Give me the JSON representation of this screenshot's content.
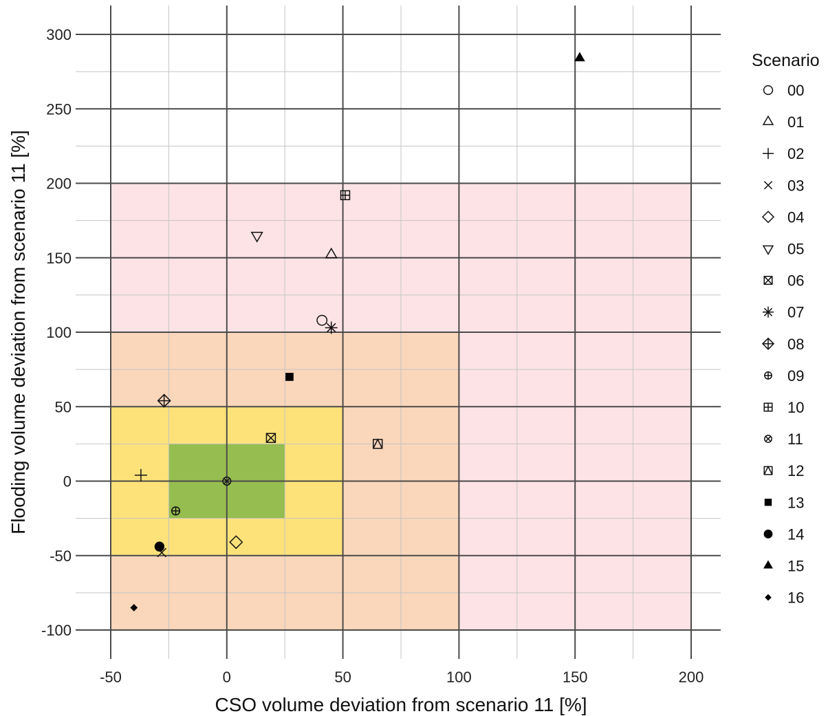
{
  "chart_data": {
    "type": "scatter",
    "xlabel": "CSO volume deviation from scenario 11 [%]",
    "ylabel": "Flooding volume deviation from scenario 11 [%]",
    "xlim": [
      -50,
      200
    ],
    "ylim": [
      -100,
      300
    ],
    "x_ticks": [
      "-50",
      "0",
      "50",
      "100",
      "150",
      "200"
    ],
    "y_ticks": [
      "-100",
      "-50",
      "0",
      "50",
      "100",
      "150",
      "200",
      "250",
      "300"
    ],
    "grid": "on",
    "legend_title": "Scenario",
    "legend_position": "right",
    "zones": [
      {
        "x": [
          -50,
          200
        ],
        "y": [
          -100,
          200
        ],
        "color": "#fde3e6"
      },
      {
        "x": [
          -50,
          100
        ],
        "y": [
          -100,
          100
        ],
        "color": "#fad6bb"
      },
      {
        "x": [
          -50,
          50
        ],
        "y": [
          -50,
          50
        ],
        "color": "#fde27a"
      },
      {
        "x": [
          -25,
          25
        ],
        "y": [
          -25,
          25
        ],
        "color": "#96bd4f"
      }
    ],
    "series": [
      {
        "name": "00",
        "marker": "circle-open",
        "x": 41,
        "y": 108
      },
      {
        "name": "01",
        "marker": "triangle-up-open",
        "x": 45,
        "y": 152
      },
      {
        "name": "02",
        "marker": "plus",
        "x": -37,
        "y": 4
      },
      {
        "name": "03",
        "marker": "cross",
        "x": -28,
        "y": -48
      },
      {
        "name": "04",
        "marker": "diamond-open",
        "x": 4,
        "y": -41
      },
      {
        "name": "05",
        "marker": "triangle-down-open",
        "x": 13,
        "y": 165
      },
      {
        "name": "06",
        "marker": "square-cross",
        "x": 19,
        "y": 29
      },
      {
        "name": "07",
        "marker": "asterisk",
        "x": 45,
        "y": 103
      },
      {
        "name": "08",
        "marker": "diamond-plus",
        "x": -27,
        "y": 54
      },
      {
        "name": "09",
        "marker": "circle-plus",
        "x": -22,
        "y": -20
      },
      {
        "name": "10",
        "marker": "square-plus",
        "x": 51,
        "y": 192
      },
      {
        "name": "11",
        "marker": "circle-cross",
        "x": 0,
        "y": 0
      },
      {
        "name": "12",
        "marker": "square-triangle",
        "x": 65,
        "y": 25
      },
      {
        "name": "13",
        "marker": "square-filled",
        "x": 27,
        "y": 70
      },
      {
        "name": "14",
        "marker": "circle-filled",
        "x": -29,
        "y": -44
      },
      {
        "name": "15",
        "marker": "triangle-up-filled",
        "x": 152,
        "y": 284
      },
      {
        "name": "16",
        "marker": "diamond-filled",
        "x": -40,
        "y": -85
      }
    ]
  }
}
